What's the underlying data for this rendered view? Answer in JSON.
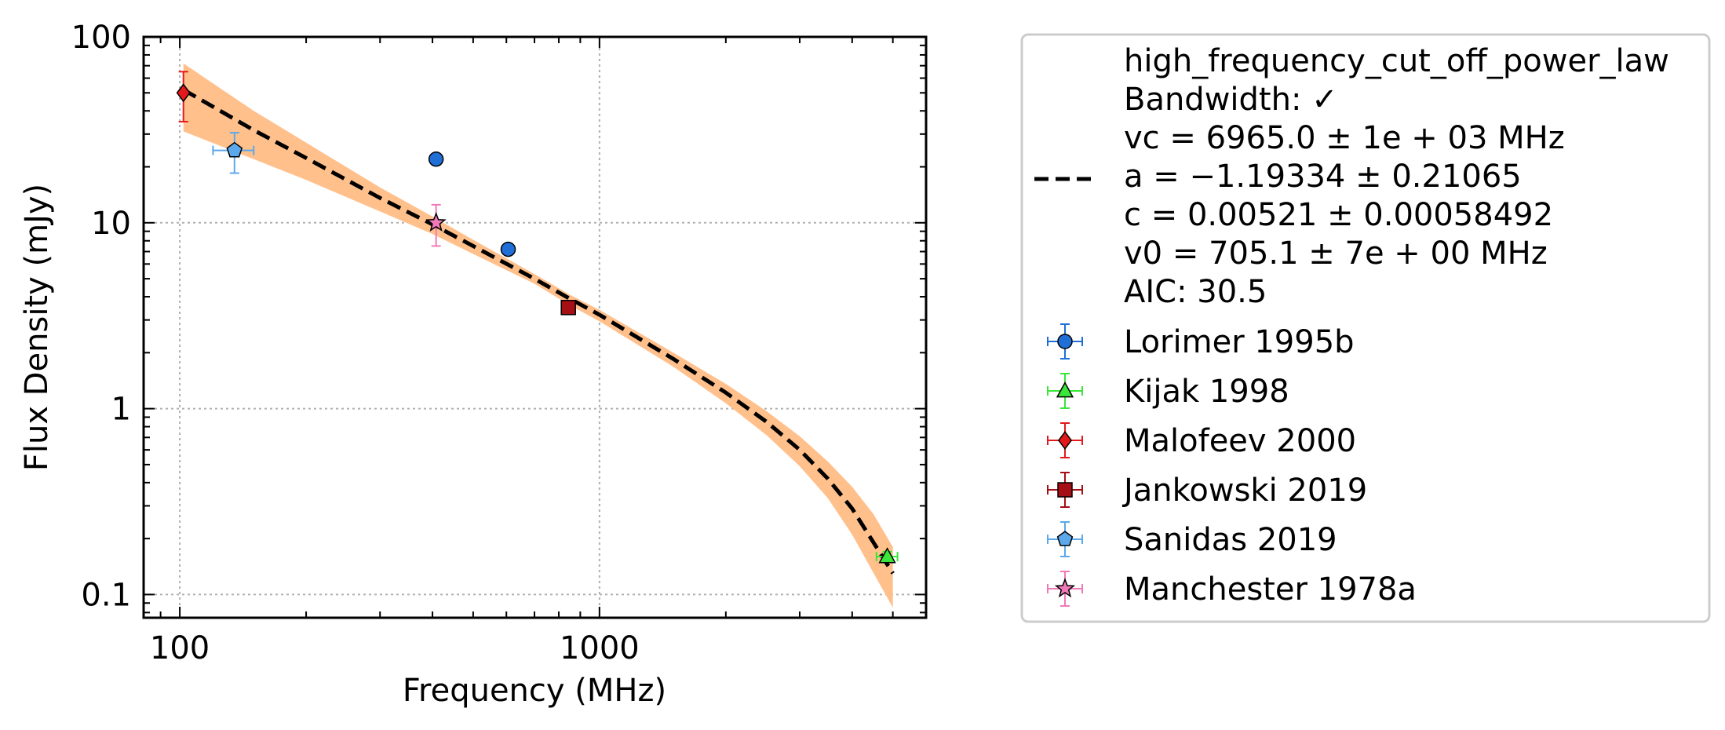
{
  "chart_data": {
    "type": "scatter",
    "xlabel": "Frequency (MHz)",
    "ylabel": "Flux Density (mJy)",
    "x_scale": "log",
    "y_scale": "log",
    "xlim": [
      82,
      6000
    ],
    "ylim": [
      0.075,
      100
    ],
    "x_ticks": [
      {
        "value": 100,
        "label": "100"
      },
      {
        "value": 1000,
        "label": "1000"
      }
    ],
    "y_ticks": [
      {
        "value": 100,
        "label": "100"
      },
      {
        "value": 10,
        "label": "10"
      },
      {
        "value": 1,
        "label": "1"
      },
      {
        "value": 0.1,
        "label": "0.1"
      }
    ],
    "grid": true,
    "legend_position": "outside-right",
    "fit": {
      "name": "high_frequency_cut_off_power_law",
      "legend_lines": [
        "high_frequency_cut_off_power_law",
        "Bandwidth: ✓",
        "vc = 6965.0 ± 1e + 03 MHz",
        "a = −1.19334 ± 0.21065",
        "c = 0.00521 ± 0.00058492",
        "v0 = 705.1 ± 7e + 00 MHz",
        "AIC: 30.5"
      ],
      "line_color": "#000000",
      "band_color": "#ffc08c",
      "x": [
        102,
        150,
        200,
        300,
        400,
        500,
        700,
        850,
        1000,
        1500,
        2000,
        2500,
        3000,
        3500,
        4000,
        4500,
        5000
      ],
      "y": [
        52,
        31.5,
        22.3,
        13.6,
        9.8,
        7.5,
        5.0,
        3.9,
        3.2,
        1.85,
        1.22,
        0.85,
        0.6,
        0.42,
        0.29,
        0.19,
        0.13
      ],
      "y_upper": [
        72,
        40,
        27,
        15.5,
        10.8,
        8.1,
        5.3,
        4.1,
        3.4,
        2.0,
        1.36,
        0.97,
        0.71,
        0.52,
        0.38,
        0.27,
        0.18
      ],
      "y_lower": [
        31,
        22,
        17,
        11.5,
        8.7,
        6.8,
        4.7,
        3.6,
        2.95,
        1.68,
        1.07,
        0.72,
        0.49,
        0.33,
        0.21,
        0.13,
        0.085
      ]
    },
    "series": [
      {
        "name": "Lorimer 1995b",
        "marker": "circle",
        "color": "#1f6fd6",
        "err_color": "#1f6fd6",
        "points": [
          {
            "x": 408,
            "y": 22,
            "yerr": 0
          },
          {
            "x": 606,
            "y": 7.2,
            "yerr": 0.4
          }
        ]
      },
      {
        "name": "Kijak 1998",
        "marker": "triangle",
        "color": "#39e639",
        "err_color": "#39e639",
        "points": [
          {
            "x": 4850,
            "y": 0.16,
            "yerr": 0.01,
            "xerr": 280
          }
        ]
      },
      {
        "name": "Malofeev 2000",
        "marker": "diamond",
        "color": "#e31a1c",
        "err_color": "#e31a1c",
        "points": [
          {
            "x": 102,
            "y": 50,
            "yerr_low": 15,
            "yerr_high": 15
          }
        ]
      },
      {
        "name": "Jankowski 2019",
        "marker": "square",
        "color": "#a50f15",
        "err_color": "#a50f15",
        "points": [
          {
            "x": 843,
            "y": 3.5,
            "yerr": 0
          }
        ]
      },
      {
        "name": "Sanidas 2019",
        "marker": "pentagon",
        "color": "#5ba8ea",
        "err_color": "#5ba8ea",
        "points": [
          {
            "x": 135,
            "y": 24.5,
            "yerr_low": 6,
            "yerr_high": 6,
            "xerr": 15
          }
        ]
      },
      {
        "name": "Manchester 1978a",
        "marker": "star",
        "color": "#f07ab8",
        "err_color": "#f07ab8",
        "points": [
          {
            "x": 408,
            "y": 10,
            "yerr_low": 2.5,
            "yerr_high": 2.5
          }
        ]
      }
    ]
  }
}
